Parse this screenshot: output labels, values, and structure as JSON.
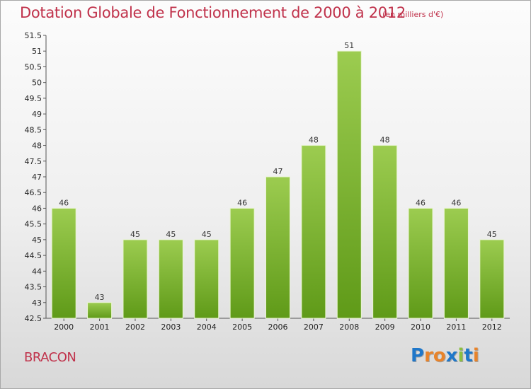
{
  "header": {
    "title": "Dotation Globale de Fonctionnement de 2000 à 2012",
    "subtitle": "(en milliers d'€)"
  },
  "footer": {
    "commune": "BRACON",
    "logo_letters": [
      "P",
      "r",
      "o",
      "x",
      "i",
      "t",
      "i"
    ],
    "logo_colors": [
      "#1f77c9",
      "#e8832a",
      "#e8832a",
      "#1f77c9",
      "#8cbf3f",
      "#1f77c9",
      "#e8832a"
    ]
  },
  "chart_data": {
    "type": "bar",
    "title": "Dotation Globale de Fonctionnement de 2000 à 2012",
    "subtitle": "(en milliers d'€)",
    "categories": [
      "2000",
      "2001",
      "2002",
      "2003",
      "2004",
      "2005",
      "2006",
      "2007",
      "2008",
      "2009",
      "2010",
      "2011",
      "2012"
    ],
    "values": [
      46,
      43,
      45,
      45,
      45,
      46,
      47,
      48,
      51,
      48,
      46,
      46,
      45
    ],
    "data_labels": [
      "46",
      "43",
      "45",
      "45",
      "45",
      "46",
      "47",
      "48",
      "51",
      "48",
      "46",
      "46",
      "45"
    ],
    "ylim": [
      42.5,
      51.5
    ],
    "yticks": [
      "42.5",
      "43",
      "43.5",
      "44",
      "44.5",
      "45",
      "45.5",
      "46",
      "46.5",
      "47",
      "47.5",
      "48",
      "48.5",
      "49",
      "49.5",
      "50",
      "50.5",
      "51",
      "51.5"
    ],
    "grid": false,
    "legend": "none",
    "bar_color_top": "#9ccc50",
    "bar_color_bottom": "#5f9a18"
  }
}
